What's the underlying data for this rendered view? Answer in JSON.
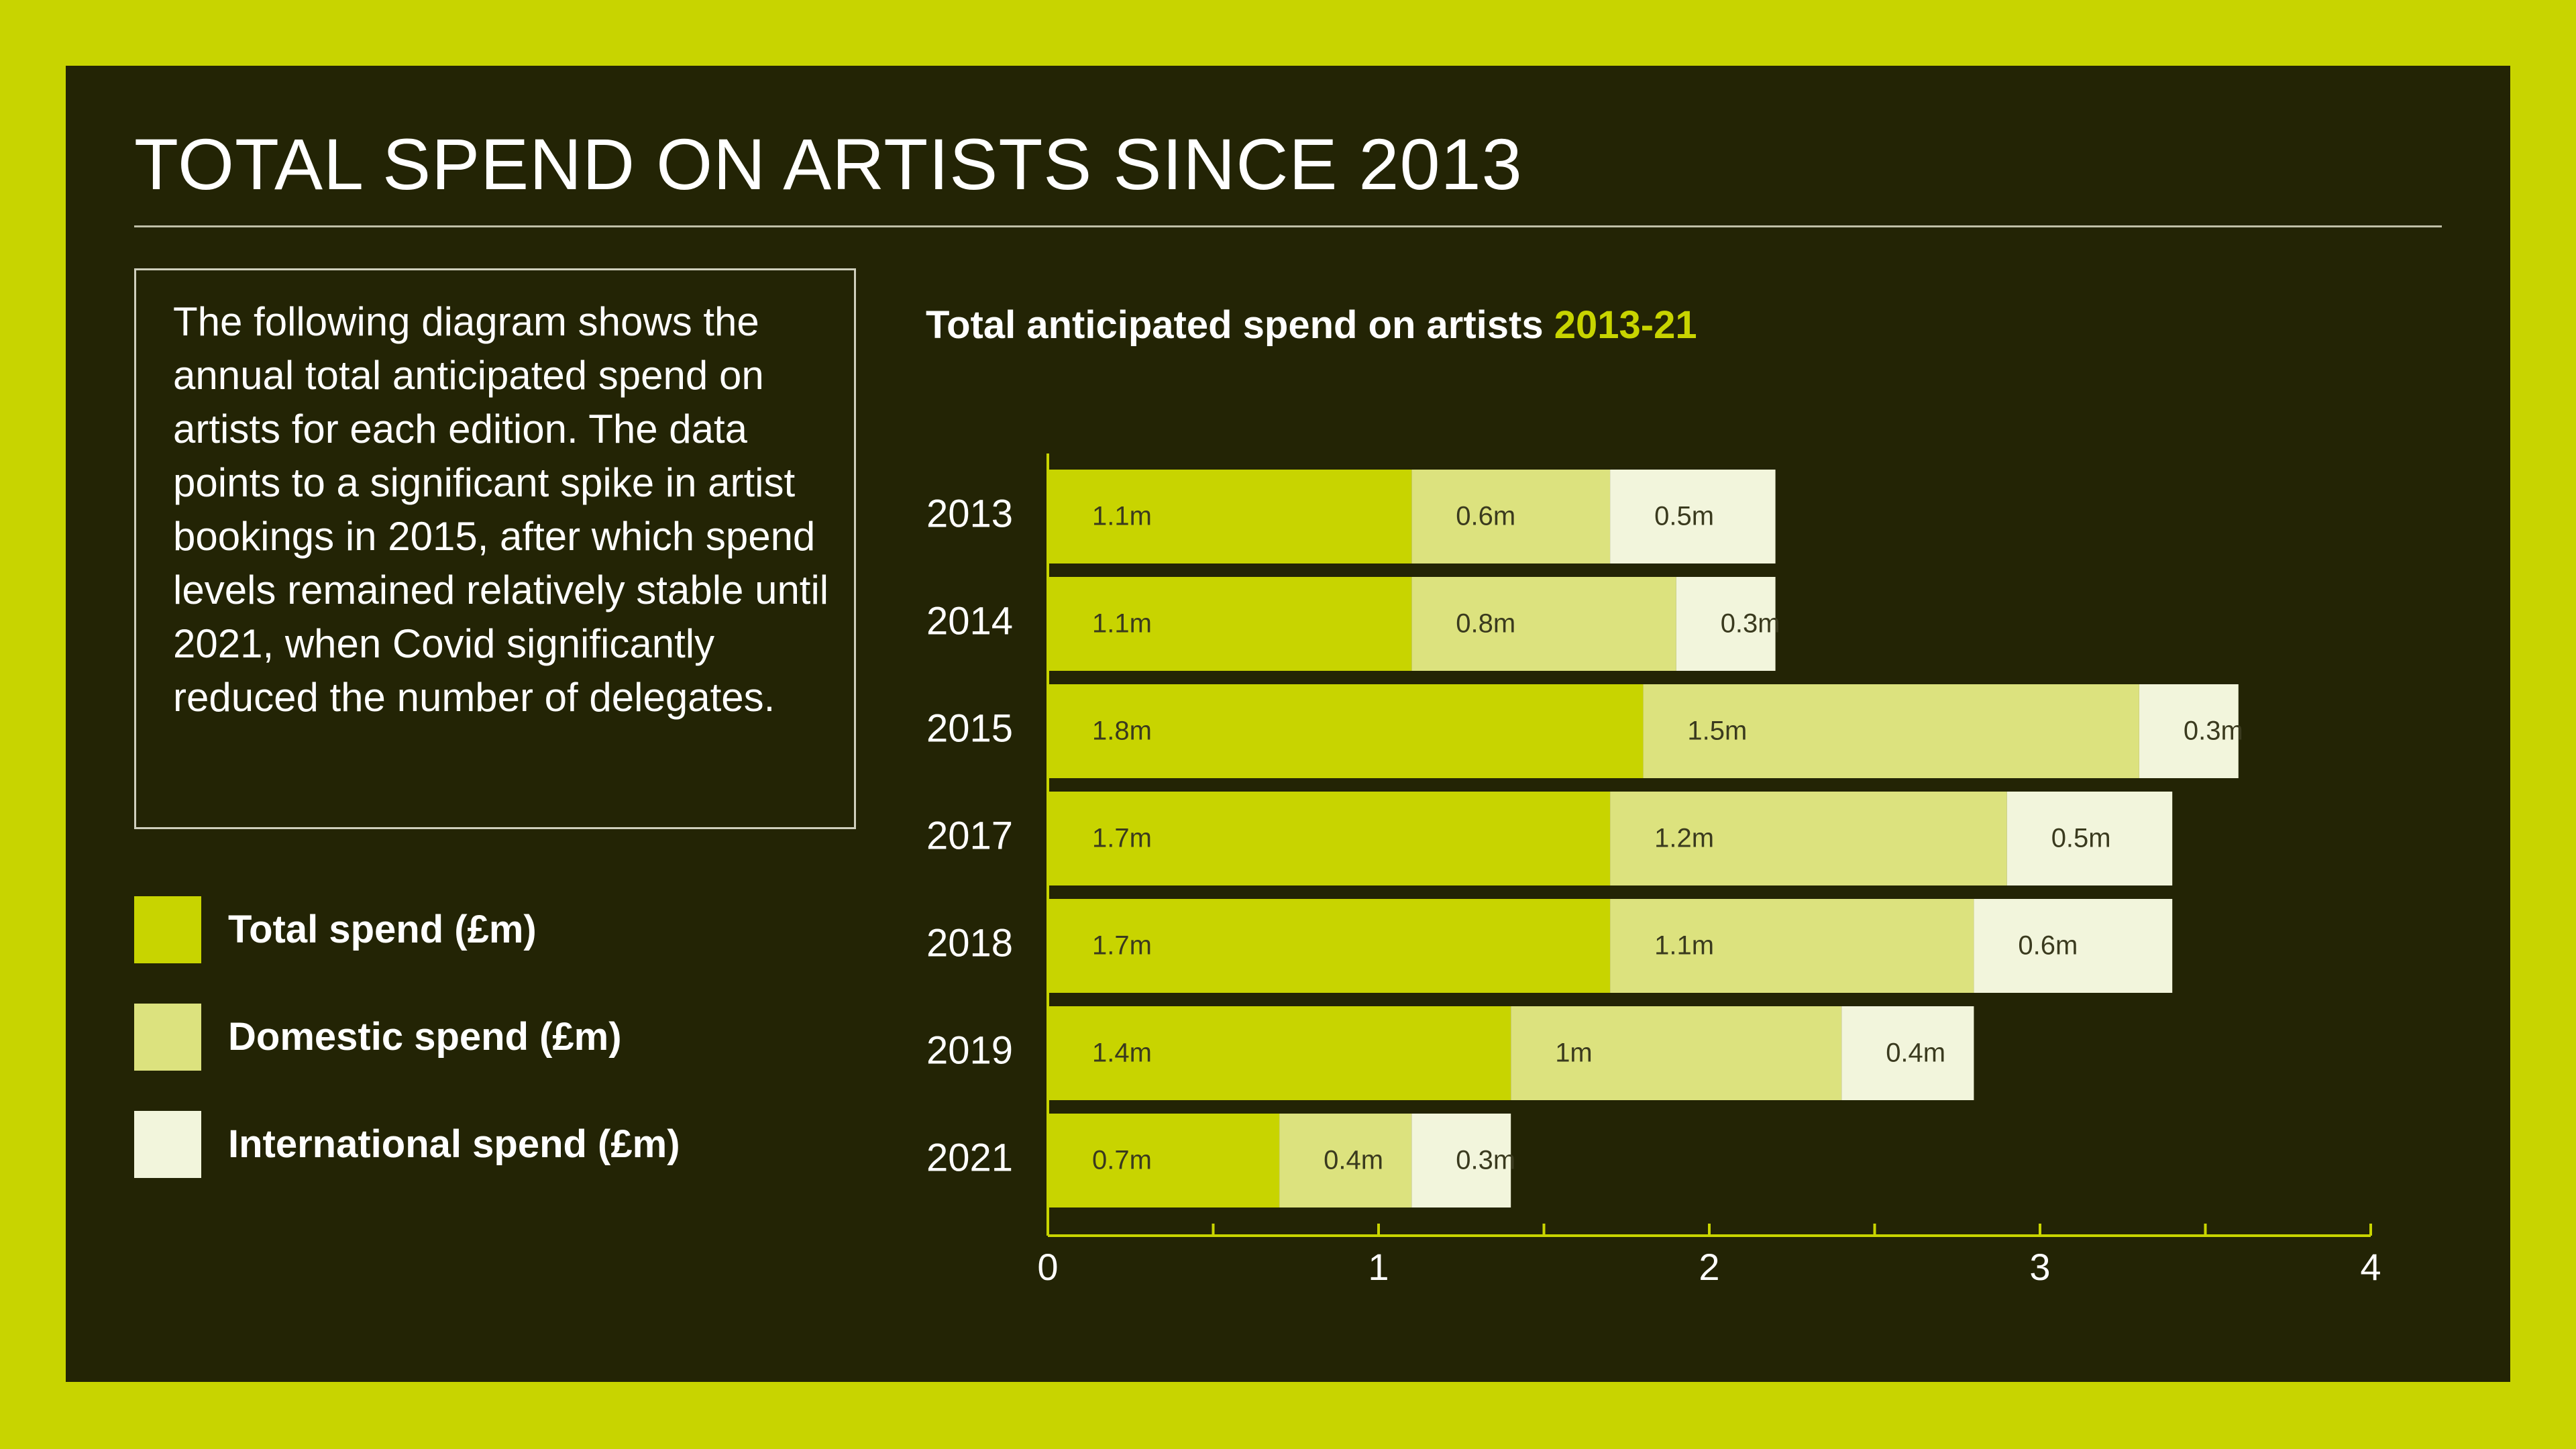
{
  "page_title": "TOTAL SPEND ON ARTISTS SINCE 2013",
  "description": "The following diagram shows the annual total anticipated spend on artists for each edition. The data points to a significant spike in artist bookings in 2015, after which spend levels remained relatively stable until 2021, when Covid significantly reduced the number of delegates.",
  "colors": {
    "background": "#c8d400",
    "panel": "#232405",
    "total": "#c8d400",
    "domestic": "#dce27e",
    "international": "#f2f5dc",
    "axis": "#c8d400"
  },
  "legend": [
    {
      "label": "Total spend (£m)",
      "color": "#c8d400"
    },
    {
      "label": "Domestic spend (£m)",
      "color": "#dce27e"
    },
    {
      "label": "International spend (£m)",
      "color": "#f2f5dc"
    }
  ],
  "chart_data": {
    "type": "bar",
    "orientation": "horizontal",
    "stacked": true,
    "title": "Total anticipated spend on artists",
    "title_highlight": "2013-21",
    "categories": [
      "2013",
      "2014",
      "2015",
      "2017",
      "2018",
      "2019",
      "2021"
    ],
    "series": [
      {
        "name": "Total spend (£m)",
        "values": [
          1.1,
          1.1,
          1.8,
          1.7,
          1.7,
          1.4,
          0.7
        ],
        "labels": [
          "1.1m",
          "1.1m",
          "1.8m",
          "1.7m",
          "1.7m",
          "1.4m",
          "0.7m"
        ]
      },
      {
        "name": "Domestic spend (£m)",
        "values": [
          0.6,
          0.8,
          1.5,
          1.2,
          1.1,
          1.0,
          0.4
        ],
        "labels": [
          "0.6m",
          "0.8m",
          "1.5m",
          "1.2m",
          "1.1m",
          "1m",
          "0.4m"
        ]
      },
      {
        "name": "International spend (£m)",
        "values": [
          0.5,
          0.3,
          0.3,
          0.5,
          0.6,
          0.4,
          0.3
        ],
        "labels": [
          "0.5m",
          "0.3m",
          "0.3m",
          "0.5m",
          "0.6m",
          "0.4m",
          "0.3m"
        ]
      }
    ],
    "xlim": [
      0,
      4
    ],
    "xticks": [
      0,
      1,
      2,
      3,
      4
    ],
    "grid": false,
    "legend_position": "left"
  }
}
